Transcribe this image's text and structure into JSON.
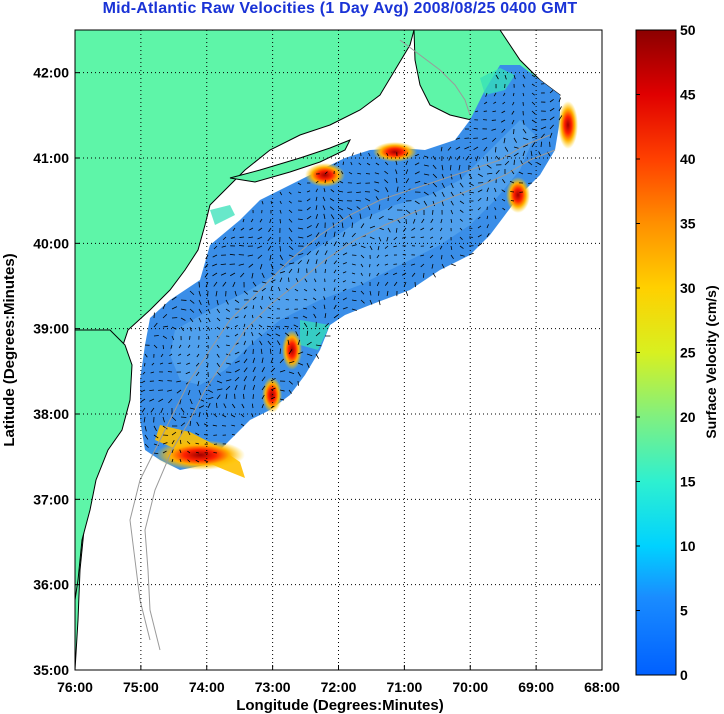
{
  "title": "Mid-Atlantic Raw Velocities (1 Day Avg) 2008/08/25 0400 GMT",
  "map": {
    "x_label": "Longitude (Degrees:Minutes)",
    "y_label": "Latitude (Degrees:Minutes)",
    "x_ticks": [
      "76:00",
      "75:00",
      "74:00",
      "73:00",
      "72:00",
      "71:00",
      "70:00",
      "69:00",
      "68:00"
    ],
    "y_ticks": [
      "42:00",
      "41:00",
      "40:00",
      "39:00",
      "38:00",
      "37:00",
      "36:00",
      "35:00"
    ],
    "lon_range": [
      -76,
      -68
    ],
    "lat_range": [
      35,
      42.5
    ],
    "land_color": "#5ef5a8",
    "coast_color": "#000000",
    "bathymetry_color": "#999999",
    "grid": "dotted"
  },
  "colorbar": {
    "label": "Surface Velocity (cm/s)",
    "ticks": [
      "0",
      "5",
      "10",
      "15",
      "20",
      "25",
      "30",
      "35",
      "40",
      "45",
      "50"
    ],
    "range": [
      0,
      50
    ],
    "colormap": "jet"
  }
}
